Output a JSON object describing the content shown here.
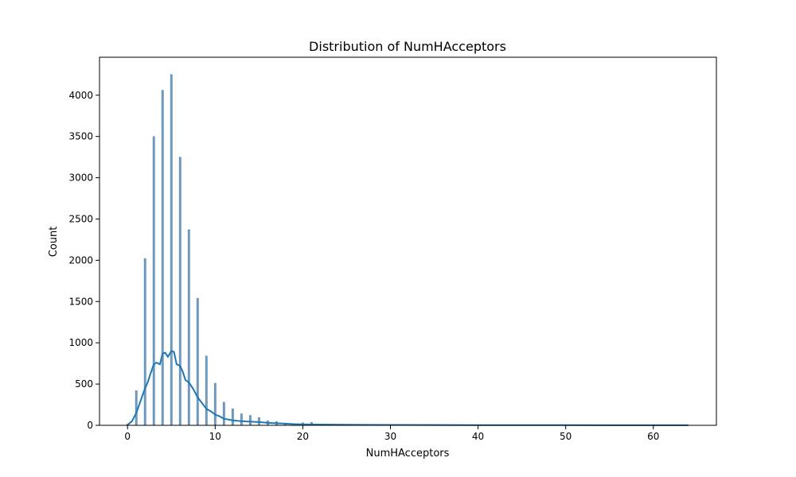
{
  "chart_data": {
    "type": "bar",
    "title": "Distribution of NumHAcceptors",
    "xlabel": "NumHAcceptors",
    "ylabel": "Count",
    "xlim": [
      -3.2,
      67.2
    ],
    "ylim": [
      0,
      4460
    ],
    "x_ticks": [
      0,
      10,
      20,
      30,
      40,
      50,
      60
    ],
    "y_ticks": [
      0,
      500,
      1000,
      1500,
      2000,
      2500,
      3000,
      3500,
      4000
    ],
    "grid": false,
    "legend": "none",
    "bar_color": "#5b8db8",
    "line_color": "#1f77b4",
    "bins": {
      "x": [
        0,
        1,
        2,
        3,
        4,
        5,
        6,
        7,
        8,
        9,
        10,
        11,
        12,
        13,
        14,
        15,
        16,
        17,
        18,
        19,
        20,
        21,
        22,
        23,
        24,
        25,
        26,
        27,
        28,
        29,
        30,
        31,
        32,
        33,
        34,
        35,
        36,
        37,
        38,
        39,
        40,
        41,
        42,
        43,
        44,
        45,
        46,
        47,
        48,
        49,
        50,
        51,
        52,
        53,
        54,
        55,
        56,
        57,
        58,
        59,
        60,
        61,
        62,
        63,
        64
      ],
      "counts": [
        15,
        420,
        2020,
        3500,
        4060,
        4250,
        3250,
        2370,
        1540,
        840,
        510,
        280,
        200,
        140,
        120,
        95,
        55,
        45,
        25,
        18,
        30,
        35,
        10,
        8,
        6,
        5,
        4,
        3,
        3,
        2,
        2,
        2,
        2,
        1,
        1,
        1,
        1,
        1,
        1,
        1,
        1,
        1,
        1,
        1,
        1,
        1,
        1,
        1,
        1,
        1,
        1,
        1,
        1,
        1,
        1,
        1,
        1,
        1,
        1,
        1,
        1,
        1,
        1,
        1,
        1
      ]
    },
    "kde": {
      "x": [
        0,
        0.5,
        1,
        1.5,
        2,
        2.3,
        2.6,
        3,
        3.3,
        3.7,
        4,
        4.3,
        4.6,
        5,
        5.3,
        5.6,
        6,
        6.3,
        6.6,
        7,
        7.5,
        8,
        8.5,
        9,
        9.5,
        10,
        10.5,
        11,
        12,
        13,
        14,
        15,
        16,
        17,
        18,
        19,
        20,
        22,
        25,
        30,
        40,
        50,
        64
      ],
      "y": [
        5,
        50,
        150,
        300,
        450,
        520,
        620,
        740,
        760,
        740,
        870,
        880,
        830,
        900,
        890,
        740,
        720,
        650,
        550,
        520,
        440,
        340,
        270,
        200,
        170,
        130,
        110,
        80,
        60,
        50,
        45,
        40,
        30,
        25,
        20,
        15,
        12,
        10,
        7,
        5,
        3,
        2,
        1
      ]
    }
  }
}
